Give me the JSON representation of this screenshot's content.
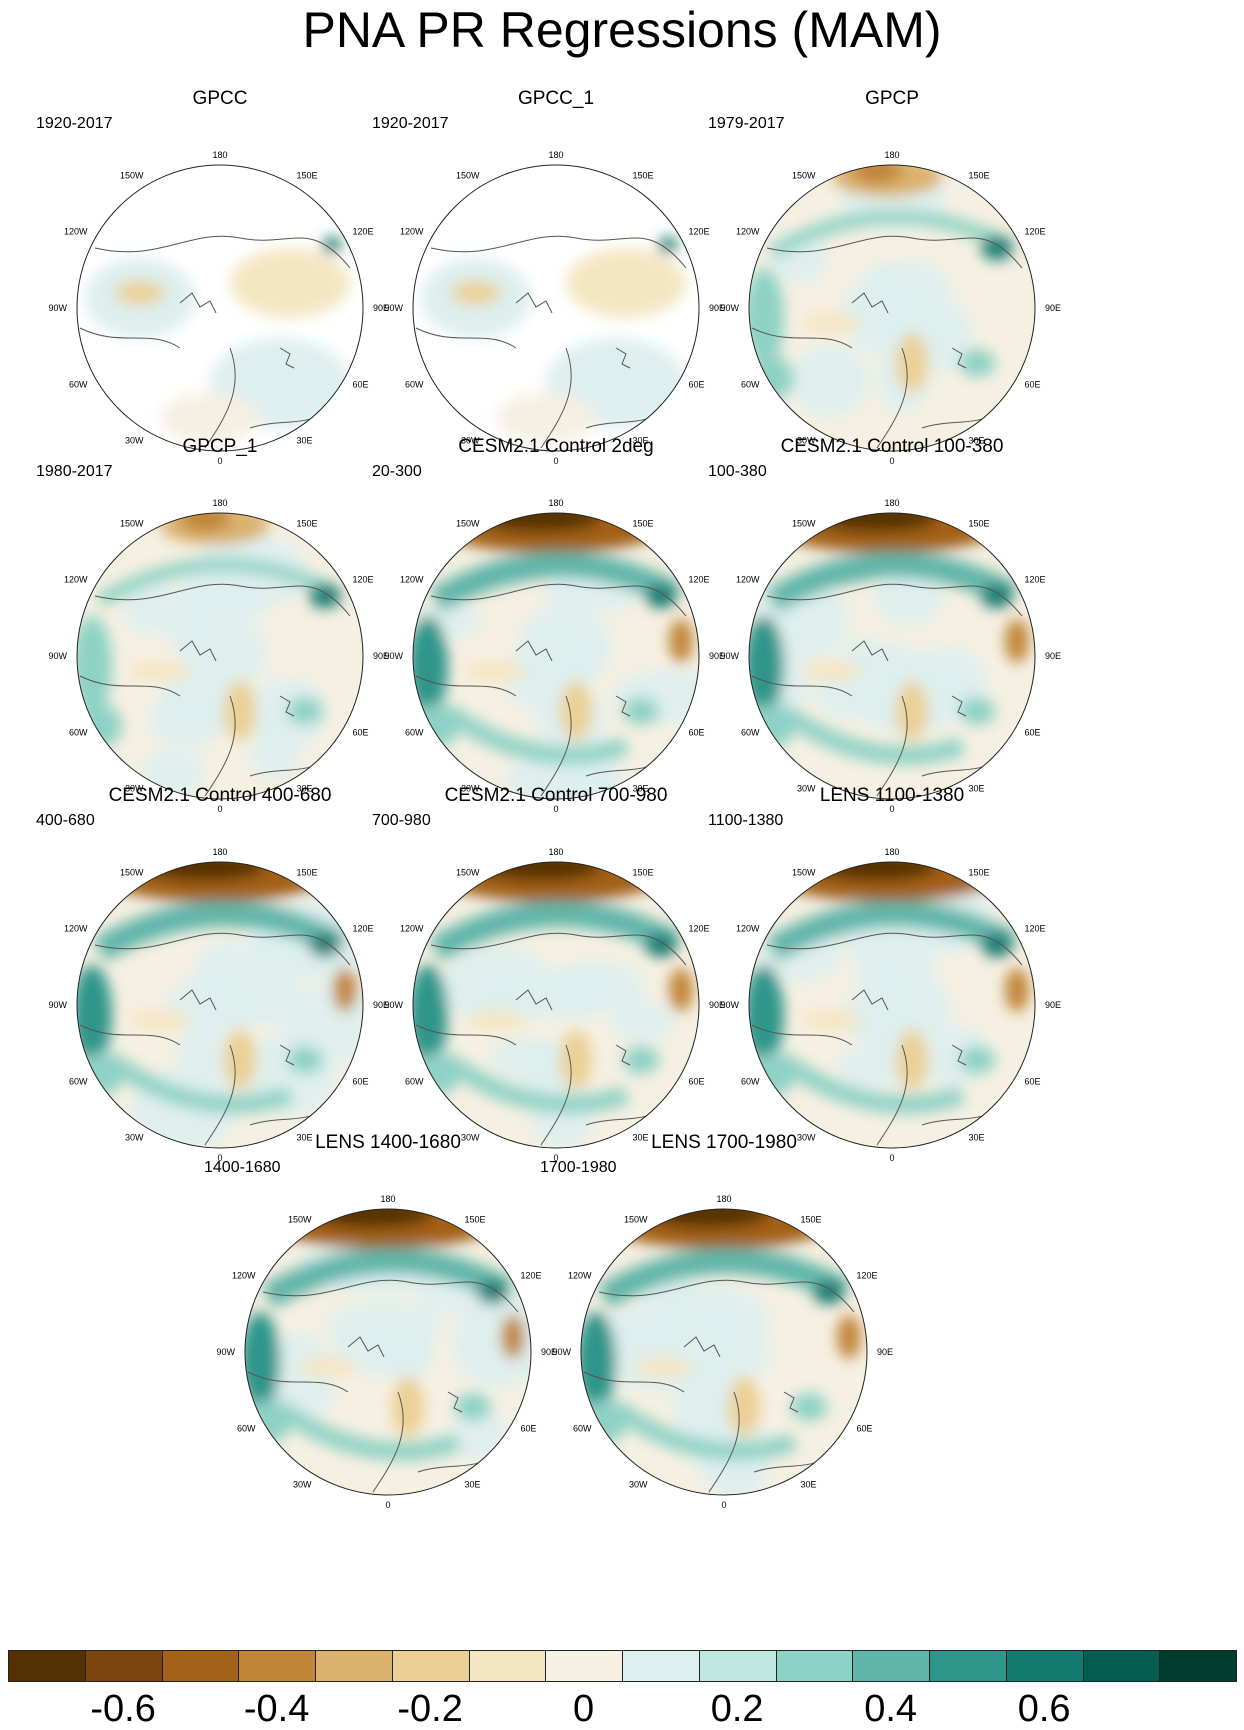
{
  "title": "PNA PR Regressions (MAM)",
  "longitude_labels": {
    "top": "180",
    "upper_left": "150W",
    "upper_right": "150E",
    "mid_upper_left": "120W",
    "mid_upper_right": "120E",
    "left": "90W",
    "right": "90E",
    "mid_lower_left": "60W",
    "mid_lower_right": "60E",
    "lower_left": "30W",
    "lower_right": "30E",
    "bottom": "0"
  },
  "panels": [
    {
      "title": "GPCC",
      "period": "1920-2017",
      "data_coverage": "land"
    },
    {
      "title": "GPCC_1",
      "period": "1920-2017",
      "data_coverage": "land"
    },
    {
      "title": "GPCP",
      "period": "1979-2017",
      "data_coverage": "global"
    },
    {
      "title": "GPCP_1",
      "period": "1980-2017",
      "data_coverage": "global"
    },
    {
      "title": "CESM2.1 Control 2deg",
      "period": "20-300",
      "data_coverage": "global"
    },
    {
      "title": "CESM2.1 Control 100-380",
      "period": "100-380",
      "data_coverage": "global"
    },
    {
      "title": "CESM2.1 Control 400-680",
      "period": "400-680",
      "data_coverage": "global"
    },
    {
      "title": "CESM2.1 Control 700-980",
      "period": "700-980",
      "data_coverage": "global"
    },
    {
      "title": "LENS 1100-1380",
      "period": "1100-1380",
      "data_coverage": "global"
    },
    {
      "title": "LENS 1400-1680",
      "period": "1400-1680",
      "data_coverage": "global"
    },
    {
      "title": "LENS 1700-1980",
      "period": "1700-1980",
      "data_coverage": "global"
    }
  ],
  "colorbar": {
    "colors": [
      "#543005",
      "#7b4510",
      "#a36119",
      "#c18538",
      "#dab16d",
      "#ebd095",
      "#f5e6c3",
      "#f5f0e2",
      "#ddefee",
      "#bfe6e0",
      "#8ed2c5",
      "#60b6a9",
      "#2f958a",
      "#127a6f",
      "#035d51",
      "#003c30"
    ],
    "tick_labels": [
      "-0.6",
      "-0.4",
      "-0.2",
      "0",
      "0.2",
      "0.4",
      "0.6"
    ]
  }
}
